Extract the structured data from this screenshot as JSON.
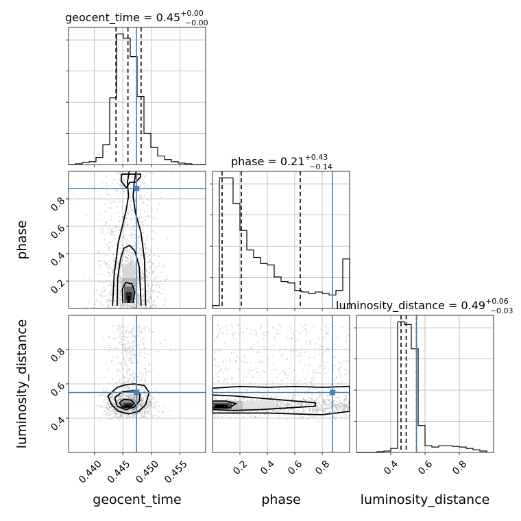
{
  "chart_data": {
    "type": "corner",
    "parameters": [
      "geocent_time",
      "phase",
      "luminosity_distance"
    ],
    "titles": [
      {
        "param": "geocent_time",
        "median": "0.45",
        "plus": "+0.00",
        "minus": "−0.00"
      },
      {
        "param": "phase",
        "median": "0.21",
        "plus": "+0.43",
        "minus": "−0.14"
      },
      {
        "param": "luminosity_distance",
        "median": "0.49",
        "plus": "+0.06",
        "minus": "−0.03"
      }
    ],
    "axes": {
      "geocent_time": {
        "range": [
          0.4355,
          0.4595
        ],
        "ticks": [
          0.44,
          0.445,
          0.45,
          0.455
        ],
        "tick_labels": [
          "0.440",
          "0.445",
          "0.450",
          "0.455"
        ]
      },
      "phase": {
        "range": [
          0.0,
          1.0
        ],
        "ticks": [
          0.2,
          0.4,
          0.6,
          0.8
        ],
        "tick_labels": [
          "0.2",
          "0.4",
          "0.6",
          "0.8"
        ]
      },
      "luminosity_distance": {
        "range": [
          0.2,
          1.0
        ],
        "ticks": [
          0.4,
          0.6,
          0.8
        ],
        "tick_labels": [
          "0.4",
          "0.6",
          "0.8"
        ]
      }
    },
    "truths": {
      "geocent_time": 0.4474,
      "phase": 0.875,
      "luminosity_distance": 0.55
    },
    "quantiles": {
      "geocent_time": [
        0.4438,
        0.4459,
        0.4482
      ],
      "phase": [
        0.07,
        0.21,
        0.64
      ],
      "luminosity_distance": [
        0.46,
        0.49,
        0.55
      ]
    },
    "hist_geocent_time": {
      "edges": [
        0.4355,
        0.4367,
        0.4379,
        0.4391,
        0.4403,
        0.4415,
        0.4427,
        0.4439,
        0.4451,
        0.4463,
        0.4475,
        0.4487,
        0.4499,
        0.4511,
        0.4523,
        0.4535,
        0.4547,
        0.4559,
        0.4571,
        0.4583,
        0.4595
      ],
      "values": [
        0,
        0.005,
        0.015,
        0.02,
        0.05,
        0.14,
        0.47,
        0.92,
        0.89,
        0.76,
        0.48,
        0.22,
        0.12,
        0.06,
        0.035,
        0.02,
        0.01,
        0.005,
        0,
        0
      ]
    },
    "hist_phase": {
      "edges": [
        0.0,
        0.05,
        0.1,
        0.15,
        0.2,
        0.25,
        0.3,
        0.35,
        0.4,
        0.45,
        0.5,
        0.55,
        0.6,
        0.65,
        0.7,
        0.75,
        0.8,
        0.85,
        0.9,
        0.95,
        1.0
      ],
      "values": [
        0.02,
        0.87,
        0.87,
        0.7,
        0.52,
        0.39,
        0.34,
        0.3,
        0.29,
        0.21,
        0.18,
        0.17,
        0.12,
        0.11,
        0.1,
        0.11,
        0.1,
        0.09,
        0.12,
        0.33
      ]
    },
    "hist_luminosity_distance": {
      "edges": [
        0.2,
        0.24,
        0.28,
        0.32,
        0.36,
        0.4,
        0.44,
        0.48,
        0.52,
        0.56,
        0.6,
        0.64,
        0.68,
        0.72,
        0.76,
        0.8,
        0.84,
        0.88,
        0.92,
        0.96
      ],
      "values": [
        0,
        0,
        0,
        0.005,
        0.01,
        0.03,
        0.97,
        0.95,
        0.77,
        0.2,
        0.05,
        0.04,
        0.05,
        0.05,
        0.045,
        0.04,
        0.03,
        0.02,
        0.01
      ]
    }
  }
}
